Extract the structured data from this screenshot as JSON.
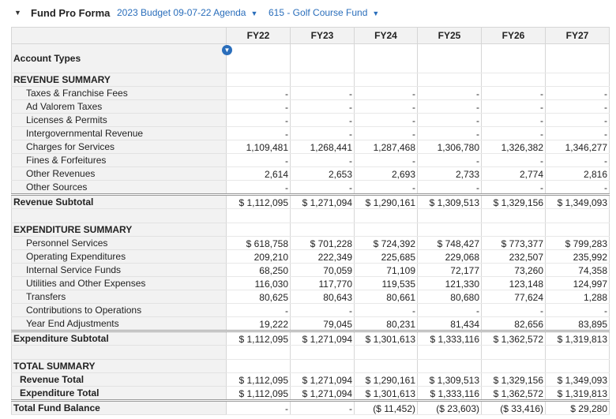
{
  "header": {
    "title": "Fund Pro Forma",
    "budget": "2023 Budget 09-07-22 Agenda",
    "fund": "615 - Golf Course Fund"
  },
  "table": {
    "columns": [
      "FY22",
      "FY23",
      "FY24",
      "FY25",
      "FY26",
      "FY27"
    ],
    "header_label": "Account Types",
    "sections": [
      {
        "title": "REVENUE SUMMARY",
        "rows": [
          {
            "label": "Taxes & Franchise Fees",
            "values": [
              "-",
              "-",
              "-",
              "-",
              "-",
              "-"
            ]
          },
          {
            "label": "Ad Valorem Taxes",
            "values": [
              "-",
              "-",
              "-",
              "-",
              "-",
              "-"
            ]
          },
          {
            "label": "Licenses & Permits",
            "values": [
              "-",
              "-",
              "-",
              "-",
              "-",
              "-"
            ]
          },
          {
            "label": "Intergovernmental Revenue",
            "values": [
              "-",
              "-",
              "-",
              "-",
              "-",
              "-"
            ]
          },
          {
            "label": "Charges for Services",
            "values": [
              "1,109,481",
              "1,268,441",
              "1,287,468",
              "1,306,780",
              "1,326,382",
              "1,346,277"
            ]
          },
          {
            "label": "Fines & Forfeitures",
            "values": [
              "-",
              "-",
              "-",
              "-",
              "-",
              "-"
            ]
          },
          {
            "label": "Other Revenues",
            "values": [
              "2,614",
              "2,653",
              "2,693",
              "2,733",
              "2,774",
              "2,816"
            ]
          },
          {
            "label": "Other Sources",
            "values": [
              "-",
              "-",
              "-",
              "-",
              "-",
              "-"
            ]
          }
        ],
        "subtotal": {
          "label": "Revenue Subtotal",
          "values": [
            "$ 1,112,095",
            "$ 1,271,094",
            "$ 1,290,161",
            "$ 1,309,513",
            "$ 1,329,156",
            "$ 1,349,093"
          ]
        }
      },
      {
        "title": "EXPENDITURE SUMMARY",
        "rows": [
          {
            "label": "Personnel Services",
            "values": [
              "$ 618,758",
              "$ 701,228",
              "$ 724,392",
              "$ 748,427",
              "$ 773,377",
              "$ 799,283"
            ]
          },
          {
            "label": "Operating Expenditures",
            "values": [
              "209,210",
              "222,349",
              "225,685",
              "229,068",
              "232,507",
              "235,992"
            ]
          },
          {
            "label": "Internal Service Funds",
            "values": [
              "68,250",
              "70,059",
              "71,109",
              "72,177",
              "73,260",
              "74,358"
            ]
          },
          {
            "label": "Utilities and Other Expenses",
            "values": [
              "116,030",
              "117,770",
              "119,535",
              "121,330",
              "123,148",
              "124,997"
            ]
          },
          {
            "label": "Transfers",
            "values": [
              "80,625",
              "80,643",
              "80,661",
              "80,680",
              "77,624",
              "1,288"
            ]
          },
          {
            "label": "Contributions to Operations",
            "values": [
              "-",
              "-",
              "-",
              "-",
              "-",
              "-"
            ]
          },
          {
            "label": "Year End Adjustments",
            "values": [
              "19,222",
              "79,045",
              "80,231",
              "81,434",
              "82,656",
              "83,895"
            ]
          }
        ],
        "subtotal": {
          "label": "Expenditure Subtotal",
          "values": [
            "$ 1,112,095",
            "$ 1,271,094",
            "$ 1,301,613",
            "$ 1,333,116",
            "$ 1,362,572",
            "$ 1,319,813"
          ]
        }
      },
      {
        "title": "TOTAL SUMMARY",
        "rows": [
          {
            "label": "Revenue Total",
            "values": [
              "$ 1,112,095",
              "$ 1,271,094",
              "$ 1,290,161",
              "$ 1,309,513",
              "$ 1,329,156",
              "$ 1,349,093"
            ]
          },
          {
            "label": "Expenditure Total",
            "values": [
              "$ 1,112,095",
              "$ 1,271,094",
              "$ 1,301,613",
              "$ 1,333,116",
              "$ 1,362,572",
              "$ 1,319,813"
            ]
          }
        ],
        "subtotal": {
          "label": "Total Fund Balance",
          "values": [
            "-",
            "-",
            "($ 11,452)",
            "($ 23,603)",
            "($ 33,416)",
            "$ 29,280"
          ]
        }
      }
    ]
  }
}
